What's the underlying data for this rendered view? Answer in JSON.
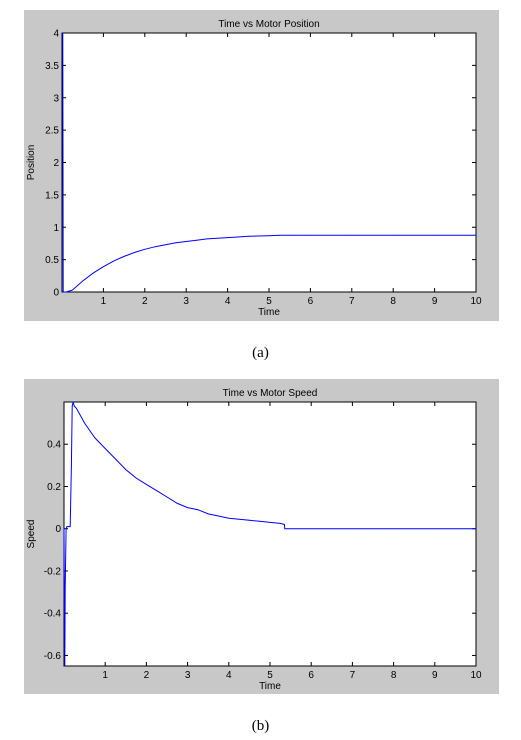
{
  "figure_a": {
    "caption": "(a)"
  },
  "figure_b": {
    "caption": "(b)"
  },
  "chart_data": [
    {
      "type": "line",
      "title": "Time vs Motor Position",
      "xlabel": "Time",
      "ylabel": "Position",
      "xlim": [
        0,
        10
      ],
      "ylim": [
        0,
        4
      ],
      "xticks": [
        1,
        2,
        3,
        4,
        5,
        6,
        7,
        8,
        9,
        10
      ],
      "yticks": [
        0,
        0.5,
        1,
        1.5,
        2,
        2.5,
        3,
        3.5,
        4
      ],
      "grid": false,
      "line_color": "#0000ff",
      "series": [
        {
          "x": [
            0,
            0.02,
            0.03,
            0.1,
            0.25,
            0.5,
            0.75,
            1,
            1.25,
            1.5,
            1.75,
            2,
            2.25,
            2.5,
            2.75,
            3,
            3.25,
            3.5,
            3.75,
            4,
            4.25,
            4.5,
            4.75,
            5,
            5.25,
            5.5,
            6,
            7,
            8,
            9,
            10
          ],
          "y": [
            4,
            4,
            0,
            0,
            0.03,
            0.17,
            0.29,
            0.39,
            0.48,
            0.55,
            0.61,
            0.66,
            0.7,
            0.73,
            0.76,
            0.78,
            0.8,
            0.82,
            0.83,
            0.84,
            0.85,
            0.86,
            0.865,
            0.87,
            0.875,
            0.875,
            0.875,
            0.875,
            0.875,
            0.875,
            0.875
          ]
        }
      ]
    },
    {
      "type": "line",
      "title": "Time vs Motor Speed",
      "xlabel": "Time",
      "ylabel": "Speed",
      "xlim": [
        0,
        10
      ],
      "ylim": [
        -0.65,
        0.6
      ],
      "xticks": [
        1,
        2,
        3,
        4,
        5,
        6,
        7,
        8,
        9,
        10
      ],
      "yticks": [
        -0.6,
        -0.4,
        -0.2,
        0,
        0.2,
        0.4
      ],
      "grid": false,
      "line_color": "#0000ff",
      "series": [
        {
          "x": [
            0,
            0.02,
            0.03,
            0.05,
            0.07,
            0.09,
            0.11,
            0.15,
            0.18,
            0.2,
            0.22,
            0.25,
            0.3,
            0.5,
            0.75,
            1,
            1.25,
            1.5,
            1.75,
            2,
            2.25,
            2.5,
            2.75,
            3,
            3.25,
            3.5,
            3.75,
            4,
            4.25,
            4.5,
            4.75,
            5,
            5.25,
            5.35,
            5.36,
            6,
            7,
            8,
            9,
            10
          ],
          "y": [
            0,
            -0.65,
            -0.28,
            0,
            0.01,
            0.01,
            0.01,
            0.01,
            0.3,
            0.58,
            0.6,
            0.58,
            0.57,
            0.5,
            0.43,
            0.38,
            0.33,
            0.28,
            0.24,
            0.21,
            0.18,
            0.15,
            0.12,
            0.1,
            0.09,
            0.07,
            0.06,
            0.05,
            0.045,
            0.04,
            0.035,
            0.03,
            0.025,
            0.02,
            0,
            0,
            0,
            0,
            0,
            0
          ]
        }
      ]
    }
  ]
}
